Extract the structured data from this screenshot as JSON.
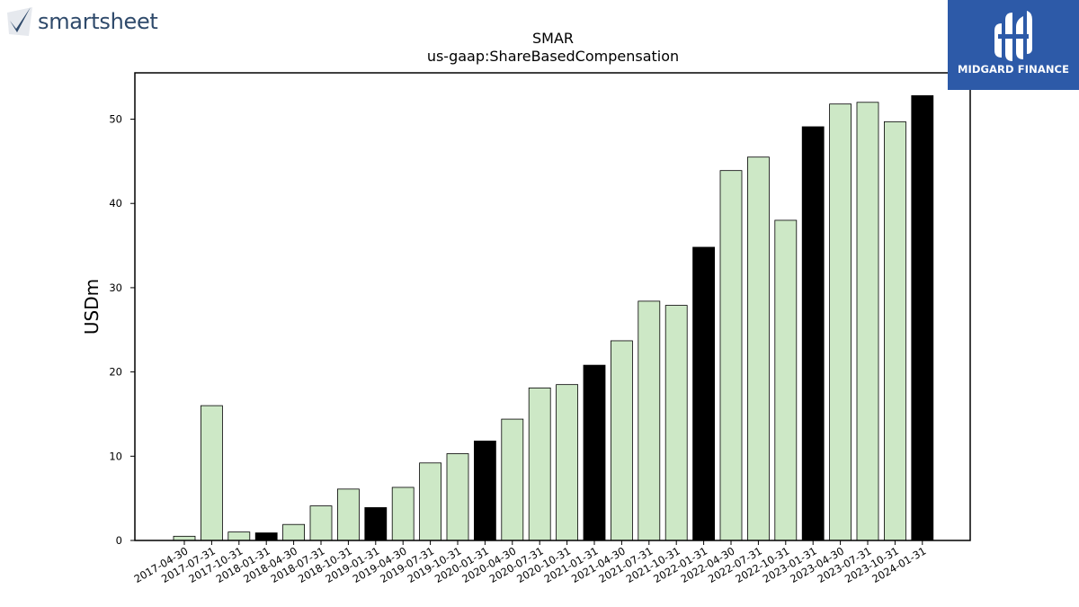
{
  "logos": {
    "left_name": "smartsheet",
    "right_name": "MIDGARD FINANCE",
    "right_bg": "#2d5aa8"
  },
  "chart_data": {
    "type": "bar",
    "title": "SMAR",
    "subtitle": "us-gaap:ShareBasedCompensation",
    "xlabel": "",
    "ylabel": "USDm",
    "ylim": [
      0,
      55.5
    ],
    "yticks": [
      0,
      10,
      20,
      30,
      40,
      50
    ],
    "grid": false,
    "colors": {
      "quarter": "#cde8c6",
      "fiscal_year_end": "#000000",
      "edge": "#000000"
    },
    "categories": [
      "2017-04-30",
      "2017-07-31",
      "2017-10-31",
      "2018-01-31",
      "2018-04-30",
      "2018-07-31",
      "2018-10-31",
      "2019-01-31",
      "2019-04-30",
      "2019-07-31",
      "2019-10-31",
      "2020-01-31",
      "2020-04-30",
      "2020-07-31",
      "2020-10-31",
      "2021-01-31",
      "2021-04-30",
      "2021-07-31",
      "2021-10-31",
      "2022-01-31",
      "2022-04-30",
      "2022-07-31",
      "2022-10-31",
      "2023-01-31",
      "2023-04-30",
      "2023-07-31",
      "2023-10-31",
      "2024-01-31"
    ],
    "values": [
      0.5,
      16.0,
      1.0,
      0.9,
      1.9,
      4.1,
      6.1,
      3.9,
      6.3,
      9.2,
      10.3,
      11.8,
      14.4,
      18.1,
      18.5,
      20.8,
      23.7,
      28.4,
      27.9,
      34.8,
      43.9,
      45.5,
      38.0,
      49.1,
      51.8,
      52.0,
      49.7,
      52.8
    ],
    "fiscal_year_end": [
      false,
      false,
      false,
      true,
      false,
      false,
      false,
      true,
      false,
      false,
      false,
      true,
      false,
      false,
      false,
      true,
      false,
      false,
      false,
      true,
      false,
      false,
      false,
      true,
      false,
      false,
      false,
      true
    ]
  }
}
